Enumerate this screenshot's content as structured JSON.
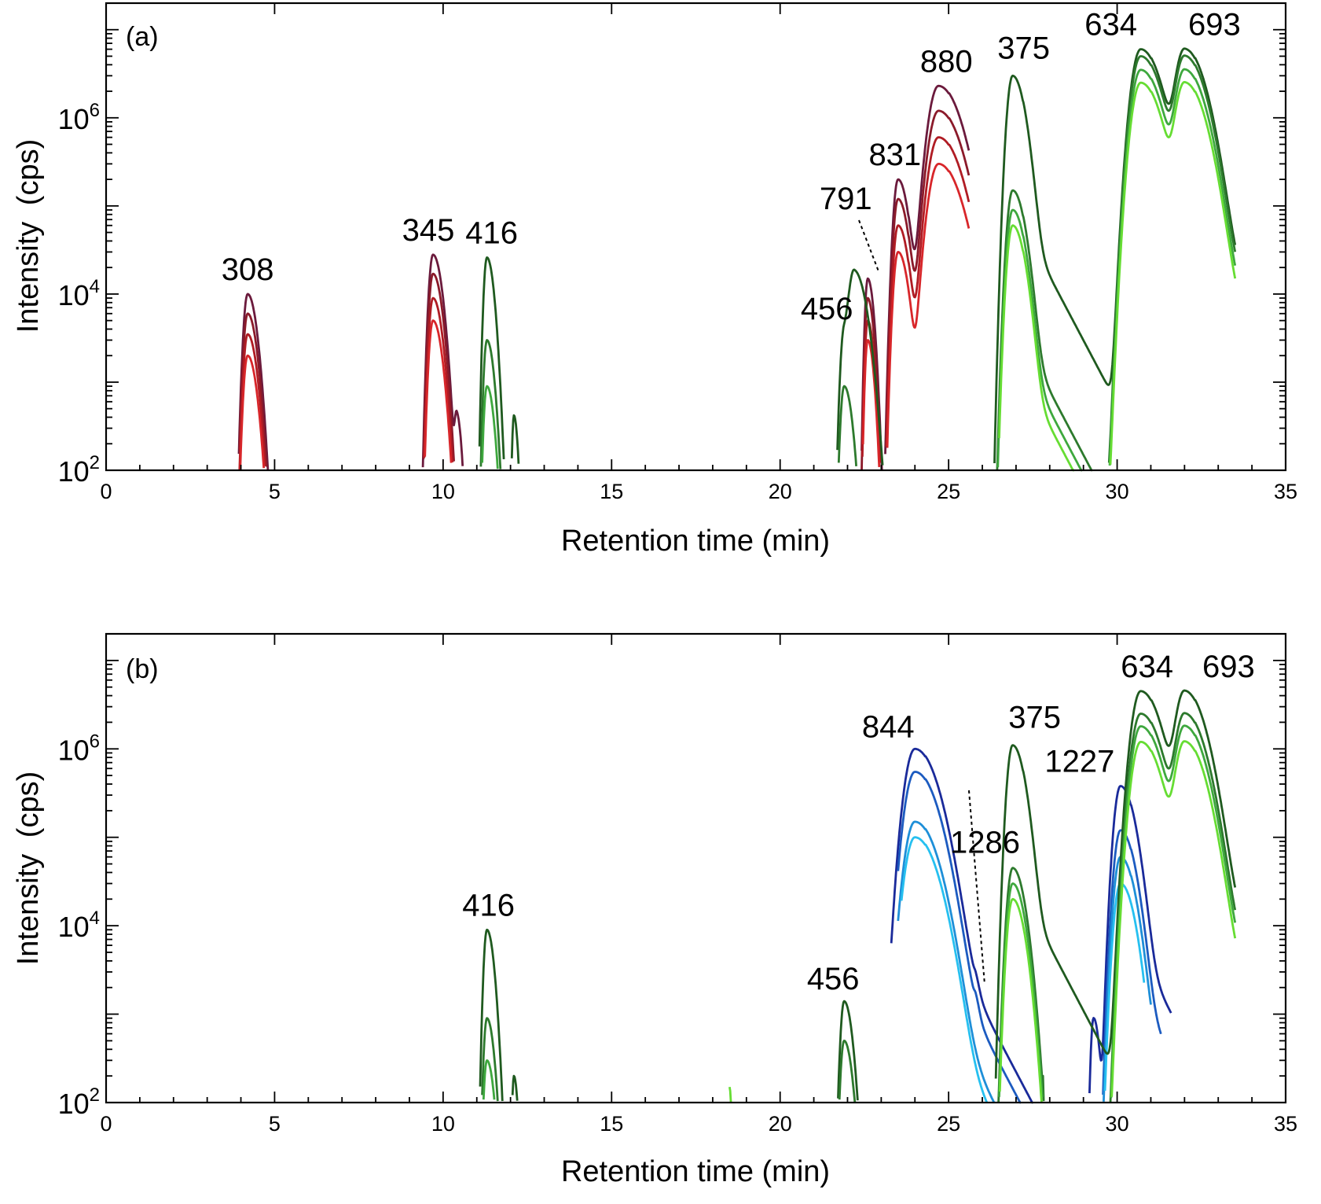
{
  "chart_data": [
    {
      "type": "line",
      "panel_label": "(a)",
      "xlabel": "Retention time (min)",
      "ylabel_main": "Intensity",
      "ylabel_unit": "(cps)",
      "xlim": [
        0,
        35
      ],
      "ylim": [
        100,
        20000000
      ],
      "yscale": "log",
      "x_ticks": [
        0,
        5,
        10,
        15,
        20,
        25,
        30,
        35
      ],
      "y_ticks": [
        {
          "base": "10",
          "exp": "2",
          "value": 100
        },
        {
          "base": "10",
          "exp": "4",
          "value": 10000
        },
        {
          "base": "10",
          "exp": "6",
          "value": 1000000
        }
      ],
      "series": [
        {
          "color": "#6b1a3c",
          "peaks": [
            [
              4.2,
              10000,
              0.09
            ],
            [
              9.7,
              28000,
              0.09
            ],
            [
              10.4,
              420,
              0.05
            ],
            [
              22.6,
              15000,
              0.06
            ],
            [
              23.5,
              200000,
              0.1
            ],
            [
              24.2,
              1700,
              0.06
            ],
            [
              24.7,
              2300000,
              0.22
            ]
          ],
          "start": 3.9,
          "end": 25.6,
          "tail": [
            25.6,
            2300
          ]
        },
        {
          "color": "#8b1a2a",
          "peaks": [
            [
              4.2,
              6000,
              0.09
            ],
            [
              9.7,
              17000,
              0.09
            ],
            [
              22.6,
              9000,
              0.06
            ],
            [
              23.5,
              120000,
              0.1
            ],
            [
              24.2,
              1200,
              0.06
            ],
            [
              24.7,
              1200000,
              0.22
            ]
          ],
          "start": 3.9,
          "end": 25.6,
          "tail": [
            25.6,
            1500
          ]
        },
        {
          "color": "#b01c24",
          "peaks": [
            [
              4.2,
              3500,
              0.09
            ],
            [
              9.7,
              9000,
              0.09
            ],
            [
              22.6,
              5000,
              0.06
            ],
            [
              23.5,
              60000,
              0.1
            ],
            [
              24.7,
              600000,
              0.22
            ]
          ],
          "start": 3.9,
          "end": 25.6,
          "tail": [
            25.6,
            900
          ]
        },
        {
          "color": "#d8262a",
          "peaks": [
            [
              4.2,
              2000,
              0.09
            ],
            [
              9.7,
              5000,
              0.09
            ],
            [
              22.6,
              3000,
              0.06
            ],
            [
              23.5,
              30000,
              0.1
            ],
            [
              24.7,
              300000,
              0.22
            ]
          ],
          "start": 3.9,
          "end": 25.6,
          "tail": [
            25.6,
            400
          ]
        },
        {
          "color": "#1f5a1f",
          "peaks": [
            [
              11.3,
              26000,
              0.07
            ],
            [
              12.1,
              420,
              0.04
            ],
            [
              21.9,
              3800,
              0.08
            ],
            [
              22.2,
              18000,
              0.12
            ],
            [
              26.9,
              3000000,
              0.12
            ],
            [
              30.7,
              6000000,
              0.2
            ],
            [
              32.0,
              6000000,
              0.2
            ]
          ],
          "start": 10.9,
          "end": 33.5,
          "tail": [
            28.2,
            1500
          ],
          "tail2": [
            33.5,
            800
          ]
        },
        {
          "color": "#2d7a2d",
          "peaks": [
            [
              11.3,
              3000,
              0.07
            ],
            [
              21.9,
              900,
              0.08
            ],
            [
              26.9,
              150000,
              0.12
            ],
            [
              30.7,
              5000000,
              0.2
            ],
            [
              32.0,
              5000000,
              0.2
            ]
          ],
          "start": 10.9,
          "end": 33.5,
          "tail": [
            27.6,
            300
          ],
          "tail2": [
            33.5,
            300
          ]
        },
        {
          "color": "#3ea83e",
          "peaks": [
            [
              11.3,
              900,
              0.07
            ],
            [
              26.9,
              90000,
              0.12
            ],
            [
              30.7,
              3500000,
              0.2
            ],
            [
              32.0,
              3500000,
              0.2
            ]
          ],
          "start": 10.9,
          "end": 33.5,
          "tail": [
            27.4,
            200
          ],
          "tail2": [
            33.5,
            200
          ]
        },
        {
          "color": "#66dd33",
          "peaks": [
            [
              26.9,
              60000,
              0.12
            ],
            [
              30.7,
              2500000,
              0.2
            ],
            [
              32.0,
              2500000,
              0.2
            ]
          ],
          "start": 26.5,
          "end": 33.5,
          "tail": [
            27.4,
            150
          ],
          "tail2": [
            33.5,
            150
          ]
        }
      ],
      "annotations": [
        {
          "text": "308",
          "x": 4.2,
          "y": 10000
        },
        {
          "text": "345",
          "x": 9.7,
          "y": 28000
        },
        {
          "text": "416",
          "x": 11.3,
          "y": 26000
        },
        {
          "text": "456",
          "x": 21.9,
          "y": 3800
        },
        {
          "text": "791",
          "x": 22.6,
          "y": 15000
        },
        {
          "text": "831",
          "x": 23.5,
          "y": 200000
        },
        {
          "text": "880",
          "x": 24.7,
          "y": 2300000
        },
        {
          "text": "375",
          "x": 26.9,
          "y": 3000000
        },
        {
          "text": "634",
          "x": 30.7,
          "y": 6000000
        },
        {
          "text": "693",
          "x": 32.0,
          "y": 6000000
        }
      ]
    },
    {
      "type": "line",
      "panel_label": "(b)",
      "xlabel": "Retention time (min)",
      "ylabel_main": "Intensity",
      "ylabel_unit": "(cps)",
      "xlim": [
        0,
        35
      ],
      "ylim": [
        100,
        20000000
      ],
      "yscale": "log",
      "x_ticks": [
        0,
        5,
        10,
        15,
        20,
        25,
        30,
        35
      ],
      "y_ticks": [
        {
          "base": "10",
          "exp": "2",
          "value": 100
        },
        {
          "base": "10",
          "exp": "4",
          "value": 10000
        },
        {
          "base": "10",
          "exp": "6",
          "value": 1000000
        }
      ],
      "series": [
        {
          "color": "#1a2a9a",
          "peaks": [
            [
              23.5,
              1500,
              0.05
            ],
            [
              24.0,
              1000000,
              0.22
            ],
            [
              25.8,
              400,
              0.04
            ],
            [
              29.3,
              900,
              0.06
            ],
            [
              30.1,
              380000,
              0.14
            ]
          ],
          "start": 23.3,
          "end": 31.6,
          "tail": [
            25.6,
            400
          ]
        },
        {
          "color": "#1c5bc0",
          "peaks": [
            [
              24.0,
              550000,
              0.22
            ],
            [
              25.8,
              300,
              0.04
            ],
            [
              30.1,
              120000,
              0.14
            ]
          ],
          "start": 23.5,
          "end": 31.3,
          "tail": [
            25.6,
            200
          ]
        },
        {
          "color": "#1e8fd8",
          "peaks": [
            [
              24.0,
              150000,
              0.22
            ],
            [
              30.1,
              60000,
              0.14
            ]
          ],
          "start": 23.5,
          "end": 31.0,
          "tail": [
            25.6,
            150
          ]
        },
        {
          "color": "#26c0f0",
          "peaks": [
            [
              24.0,
              100000,
              0.22
            ],
            [
              30.1,
              30000,
              0.14
            ]
          ],
          "start": 23.6,
          "end": 30.8,
          "tail": [
            25.4,
            120
          ]
        },
        {
          "color": "#1f5a1f",
          "peaks": [
            [
              11.3,
              9000,
              0.07
            ],
            [
              12.1,
              200,
              0.04
            ],
            [
              21.9,
              1400,
              0.08
            ],
            [
              26.9,
              1100000,
              0.12
            ],
            [
              30.7,
              4500000,
              0.2
            ],
            [
              32.0,
              4500000,
              0.2
            ]
          ],
          "start": 10.9,
          "end": 33.5,
          "tail": [
            28.2,
            300
          ],
          "tail2": [
            33.5,
            1500
          ]
        },
        {
          "color": "#2d7a2d",
          "peaks": [
            [
              11.3,
              900,
              0.07
            ],
            [
              21.9,
              500,
              0.08
            ],
            [
              26.9,
              45000,
              0.12
            ],
            [
              30.7,
              2500000,
              0.2
            ],
            [
              32.0,
              2500000,
              0.2
            ]
          ],
          "start": 10.9,
          "end": 33.5,
          "tail": [
            27.8,
            200
          ],
          "tail2": [
            33.5,
            700
          ]
        },
        {
          "color": "#3ea83e",
          "peaks": [
            [
              11.3,
              300,
              0.07
            ],
            [
              26.9,
              30000,
              0.12
            ],
            [
              30.7,
              1800000,
              0.2
            ],
            [
              32.0,
              1800000,
              0.2
            ]
          ],
          "start": 10.9,
          "end": 33.5,
          "tail": [
            27.4,
            150
          ],
          "tail2": [
            33.5,
            500
          ]
        },
        {
          "color": "#66dd33",
          "peaks": [
            [
              18.5,
              150,
              0.02
            ],
            [
              26.9,
              20000,
              0.12
            ],
            [
              30.7,
              1200000,
              0.2
            ],
            [
              32.0,
              1200000,
              0.2
            ]
          ],
          "start": 18.3,
          "end": 33.5,
          "tail": [
            27.4,
            120
          ],
          "tail2": [
            33.5,
            400
          ]
        }
      ],
      "annotations": [
        {
          "text": "416",
          "x": 11.3,
          "y": 9000
        },
        {
          "text": "456",
          "x": 21.9,
          "y": 1400
        },
        {
          "text": "844",
          "x": 24.0,
          "y": 1000000
        },
        {
          "text": "1286",
          "x": 25.8,
          "y": 400
        },
        {
          "text": "375",
          "x": 26.9,
          "y": 1100000
        },
        {
          "text": "1227",
          "x": 30.1,
          "y": 380000
        },
        {
          "text": "634",
          "x": 30.7,
          "y": 4500000
        },
        {
          "text": "693",
          "x": 32.0,
          "y": 4500000
        }
      ]
    }
  ]
}
